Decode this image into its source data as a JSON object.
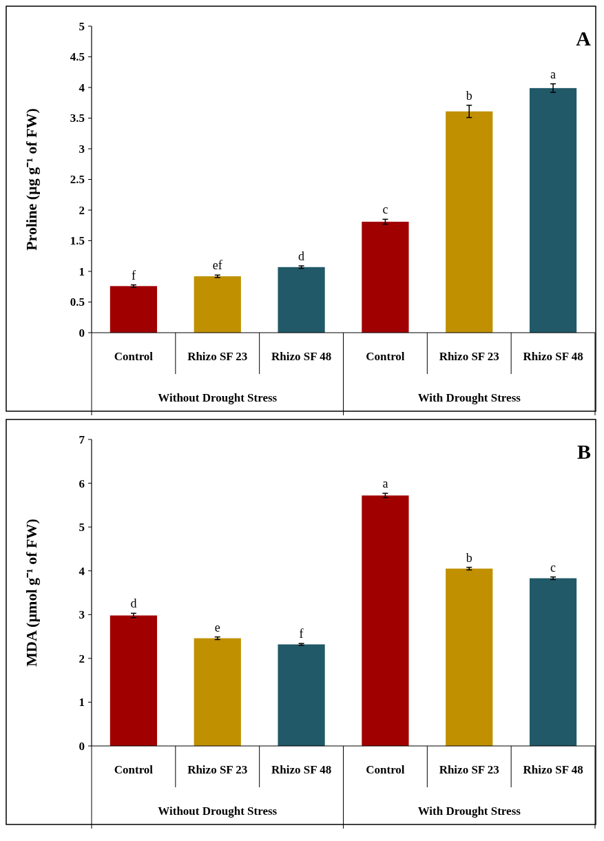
{
  "chart_data": [
    {
      "type": "bar",
      "title": "A",
      "ylabel": "Proline (µg g⁻¹ of FW)",
      "categories": [
        "Control",
        "Rhizo SF 23",
        "Rhizo SF 48",
        "Control",
        "Rhizo SF 23",
        "Rhizo SF 48"
      ],
      "values": [
        0.76,
        0.92,
        1.07,
        1.81,
        3.61,
        3.99
      ],
      "errors": [
        0.02,
        0.02,
        0.02,
        0.04,
        0.1,
        0.07
      ],
      "colors": [
        "#a00000",
        "#c09000",
        "#215968",
        "#a00000",
        "#c09000",
        "#215968"
      ],
      "value_labels": [
        "f",
        "ef",
        "d",
        "c",
        "b",
        "a"
      ],
      "ylim": [
        0,
        5
      ],
      "yticks": [
        0,
        0.5,
        1,
        1.5,
        2,
        2.5,
        3,
        3.5,
        4,
        4.5,
        5
      ],
      "annotations": [
        "Without Drought Stress",
        "With Drought Stress"
      ]
    },
    {
      "type": "bar",
      "title": "B",
      "ylabel": "MDA (µmol g⁻¹ of FW)",
      "categories": [
        "Control",
        "Rhizo SF 23",
        "Rhizo SF 48",
        "Control",
        "Rhizo SF 23",
        "Rhizo SF 48"
      ],
      "values": [
        2.98,
        2.46,
        2.32,
        5.72,
        4.05,
        3.83
      ],
      "errors": [
        0.05,
        0.03,
        0.02,
        0.05,
        0.03,
        0.03
      ],
      "colors": [
        "#a00000",
        "#c09000",
        "#215968",
        "#a00000",
        "#c09000",
        "#215968"
      ],
      "value_labels": [
        "d",
        "e",
        "f",
        "a",
        "b",
        "c"
      ],
      "ylim": [
        0,
        7
      ],
      "yticks": [
        0,
        1,
        2,
        3,
        4,
        5,
        6,
        7
      ],
      "annotations": [
        "Without Drought Stress",
        "With Drought Stress"
      ]
    }
  ]
}
